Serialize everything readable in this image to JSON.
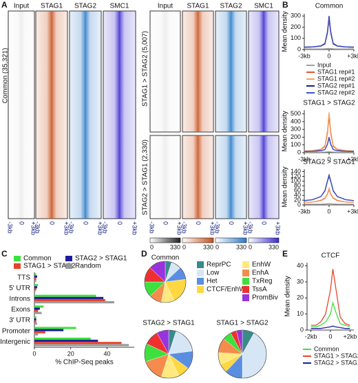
{
  "panel_labels": [
    "A",
    "B",
    "C",
    "D",
    "E"
  ],
  "heatmaps": {
    "columns": [
      "Input",
      "STAG1",
      "STAG2",
      "SMC1"
    ],
    "colors": [
      "#222222",
      "#c8501a",
      "#2a7ac8",
      "#3a2ad0"
    ],
    "groups": [
      "Common (35,321)",
      "STAG1 > STAG2 (5,007)",
      "STAG2 > STAG1 (2,330)"
    ],
    "x_labels": [
      "-3kb",
      "0",
      "+3kb"
    ],
    "scale_ticks": [
      0,
      330
    ]
  },
  "chart_data": [
    {
      "type": "line",
      "title": "Common",
      "y_label": "Mean density",
      "x": [
        -3,
        -2,
        -1,
        -0.5,
        -0.2,
        0,
        0.2,
        0.5,
        1,
        2,
        3
      ],
      "xlim": [
        -3,
        3
      ],
      "xticks": [
        {
          "value": -3,
          "label": "-3kb"
        },
        0,
        {
          "value": 3,
          "label": "+3kb"
        }
      ],
      "ylim": [
        0,
        320
      ],
      "yticks": [
        0,
        100,
        200,
        300
      ],
      "series": [
        {
          "name": "Input",
          "color": "#9e9e9e",
          "values": [
            5,
            5,
            5,
            6,
            8,
            10,
            8,
            6,
            5,
            5,
            5
          ]
        },
        {
          "name": "STAG1 rep#1",
          "color": "#e8502a",
          "values": [
            20,
            22,
            30,
            50,
            150,
            280,
            150,
            50,
            30,
            22,
            20
          ]
        },
        {
          "name": "STAG1 rep#2",
          "color": "#f5a35c",
          "values": [
            20,
            22,
            30,
            48,
            140,
            260,
            140,
            48,
            30,
            22,
            20
          ]
        },
        {
          "name": "STAG2 rep#1",
          "color": "#1a1a8c",
          "values": [
            22,
            24,
            32,
            55,
            160,
            300,
            160,
            55,
            32,
            24,
            22
          ]
        },
        {
          "name": "STAG2 rep#2",
          "color": "#3b4fc4",
          "values": [
            20,
            22,
            30,
            50,
            150,
            285,
            150,
            50,
            30,
            22,
            20
          ]
        }
      ]
    },
    {
      "type": "line",
      "title": "STAG1 > STAG2",
      "y_label": "Mean density",
      "x": [
        -3,
        -2,
        -1,
        -0.5,
        -0.2,
        0,
        0.2,
        0.5,
        1,
        2,
        3
      ],
      "xlim": [
        -3,
        3
      ],
      "xticks": [
        {
          "value": -3,
          "label": "-3kb"
        },
        0,
        {
          "value": 3,
          "label": "+3kb"
        }
      ],
      "ylim": [
        0,
        550
      ],
      "yticks": [
        0,
        100,
        200,
        300,
        400,
        500
      ],
      "series": [
        {
          "color": "#9e9e9e",
          "values": [
            5,
            5,
            6,
            8,
            10,
            12,
            10,
            8,
            6,
            5,
            5
          ]
        },
        {
          "color": "#e8502a",
          "values": [
            20,
            25,
            40,
            80,
            250,
            470,
            250,
            80,
            40,
            25,
            20
          ]
        },
        {
          "color": "#f5a35c",
          "values": [
            22,
            28,
            45,
            90,
            280,
            520,
            280,
            90,
            45,
            28,
            22
          ]
        },
        {
          "color": "#1a1a8c",
          "values": [
            15,
            18,
            25,
            40,
            110,
            200,
            110,
            40,
            25,
            18,
            15
          ]
        },
        {
          "color": "#3b4fc4",
          "values": [
            15,
            18,
            25,
            40,
            105,
            190,
            105,
            40,
            25,
            18,
            15
          ]
        }
      ]
    },
    {
      "type": "line",
      "title": "STAG2 > STAG1",
      "y_label": "Mean density",
      "x": [
        -3,
        -2,
        -1,
        -0.5,
        -0.2,
        0,
        0.2,
        0.5,
        1,
        2,
        3
      ],
      "xlim": [
        -3,
        3
      ],
      "xticks": [
        {
          "value": -3,
          "label": "-3kb"
        },
        0,
        {
          "value": 3,
          "label": "+3kb"
        }
      ],
      "ylim": [
        0,
        150
      ],
      "yticks": [
        0,
        20,
        40,
        60,
        80,
        100,
        120,
        140
      ],
      "series": [
        {
          "color": "#9e9e9e",
          "values": [
            3,
            3,
            3,
            4,
            5,
            6,
            5,
            4,
            3,
            3,
            3
          ]
        },
        {
          "color": "#e8502a",
          "values": [
            10,
            12,
            18,
            28,
            45,
            65,
            45,
            28,
            18,
            12,
            10
          ]
        },
        {
          "color": "#f5a35c",
          "values": [
            10,
            12,
            20,
            30,
            48,
            70,
            48,
            30,
            20,
            12,
            10
          ]
        },
        {
          "color": "#1a1a8c",
          "values": [
            18,
            22,
            35,
            60,
            100,
            125,
            100,
            60,
            35,
            22,
            18
          ]
        },
        {
          "color": "#3b4fc4",
          "values": [
            18,
            22,
            35,
            58,
            98,
            120,
            98,
            58,
            35,
            22,
            18
          ]
        }
      ]
    },
    {
      "type": "hbar",
      "x_label": "% ChIP-Seq peaks",
      "categories": [
        "TTS",
        "5' UTR",
        "Introns",
        "Exons",
        "3' UTR",
        "Promoter",
        "Intergenic"
      ],
      "xlim": [
        0,
        55
      ],
      "xticks": [
        0,
        20,
        40
      ],
      "series": [
        {
          "name": "Common",
          "color": "#3ee03e",
          "values": [
            1,
            2,
            34,
            5,
            1,
            23,
            31
          ]
        },
        {
          "name": "STAG2 > STAG1",
          "color": "#1c1c9a",
          "values": [
            1.5,
            1.5,
            38,
            3,
            1,
            16,
            35
          ]
        },
        {
          "name": "STAG1 > STAG2",
          "color": "#e8432a",
          "values": [
            1,
            1,
            39,
            2,
            1,
            6,
            48
          ]
        },
        {
          "name": "Random",
          "color": "#999999",
          "values": [
            1,
            0.5,
            44,
            4,
            1.5,
            2,
            52
          ]
        }
      ]
    },
    {
      "type": "pie",
      "categories": [
        "ReprPC",
        "Low",
        "Het",
        "CTCF/EnhW",
        "EnhW",
        "EnhA",
        "TxReg",
        "TssA",
        "PromBiv"
      ],
      "colors": [
        "#3a8a8a",
        "#d6e6f5",
        "#5a8ee0",
        "#ffd740",
        "#ffe97f",
        "#f58b4c",
        "#3ee03e",
        "#f03030",
        "#9933dd"
      ],
      "pies": [
        {
          "title": "Common",
          "values": [
            5,
            8,
            10,
            20,
            10,
            10,
            12,
            12,
            13
          ]
        },
        {
          "title": "STAG2 > STAG1",
          "values": [
            5,
            18,
            12,
            8,
            12,
            15,
            12,
            10,
            8
          ]
        },
        {
          "title": "STAG1 > STAG2",
          "values": [
            8,
            42,
            12,
            6,
            8,
            10,
            6,
            4,
            4
          ]
        }
      ]
    },
    {
      "type": "line",
      "title": "CTCF",
      "y_label": "Mean density",
      "x": [
        -2,
        -1.5,
        -1,
        -0.5,
        0,
        0.25,
        0.5,
        1,
        1.5,
        2
      ],
      "xlim": [
        -2.4,
        2.4
      ],
      "xticks": [
        {
          "value": -2,
          "label": "-2kb"
        },
        0,
        {
          "value": 2,
          "label": "+2kb"
        }
      ],
      "ylim": [
        0,
        42
      ],
      "yticks": [
        0,
        10,
        20,
        30,
        40
      ],
      "series": [
        {
          "name": "Common",
          "color": "#3ee03e",
          "values": [
            2,
            2,
            3,
            5,
            10,
            17,
            12,
            4,
            3,
            2
          ]
        },
        {
          "name": "STAG1 > STAG2",
          "color": "#e8432a",
          "values": [
            3,
            3,
            5,
            10,
            25,
            38,
            28,
            8,
            4,
            3
          ]
        },
        {
          "name": "STAG2 > STAG1",
          "color": "#1c1c9a",
          "values": [
            1,
            1,
            1,
            1.5,
            2,
            2.5,
            2,
            1.5,
            1,
            1
          ]
        }
      ]
    }
  ]
}
